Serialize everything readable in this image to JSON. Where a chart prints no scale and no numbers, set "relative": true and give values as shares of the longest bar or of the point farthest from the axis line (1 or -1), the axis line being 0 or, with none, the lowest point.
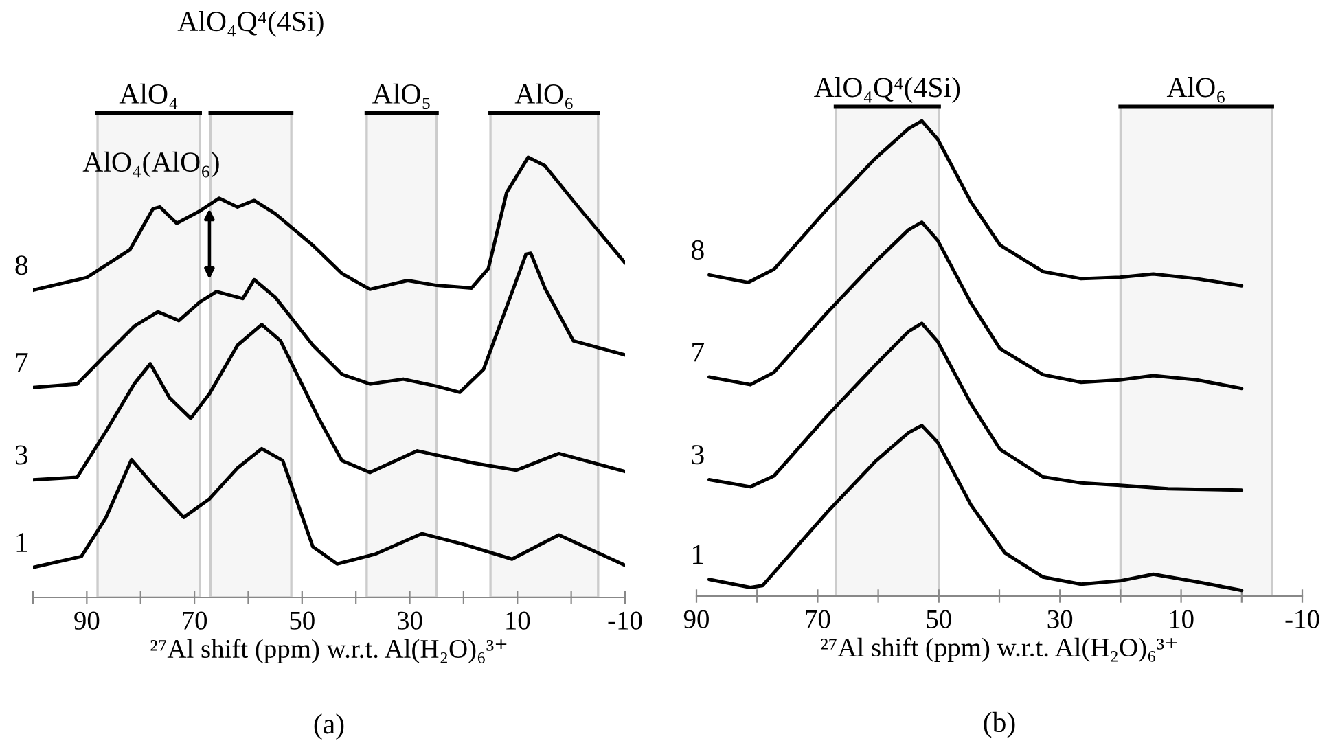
{
  "chart_data": [
    {
      "type": "line",
      "relative": true,
      "xlabel": "²⁷Al shift (ppm) w.r.t. Al(H₂O)₆³⁺",
      "xlim": [
        100,
        -10
      ],
      "xticks": [
        {
          "value": 100,
          "label": null
        },
        90,
        {
          "value": 80,
          "label": null
        },
        70,
        {
          "value": 60,
          "label": null
        },
        50,
        {
          "value": 40,
          "label": null
        },
        30,
        {
          "value": 20,
          "label": null
        },
        10,
        {
          "value": 0,
          "label": null
        },
        -10
      ],
      "grid": false,
      "legend": false,
      "marker": "none",
      "line_style": "solid",
      "series": [
        {
          "name": "8",
          "color": "#000000",
          "x": [
            100,
            90,
            82,
            77.7,
            76.4,
            73.3,
            69,
            65.4,
            62,
            58.9,
            55,
            48,
            42.6,
            37.4,
            30.4,
            25,
            18.5,
            15.4,
            12,
            8,
            4.9,
            -1.2,
            -10
          ],
          "values": [
            0.698,
            0.727,
            0.79,
            0.883,
            0.887,
            0.85,
            0.878,
            0.907,
            0.887,
            0.902,
            0.872,
            0.8,
            0.736,
            0.7,
            0.72,
            0.709,
            0.703,
            0.747,
            0.92,
            1.0,
            0.981,
            0.889,
            0.76
          ]
        },
        {
          "name": "7",
          "color": "#000000",
          "x": [
            100,
            91.8,
            86.5,
            81.2,
            76.8,
            72.9,
            69,
            65.9,
            61,
            58.9,
            55,
            48,
            42.6,
            37.4,
            31.2,
            25,
            20.7,
            16.3,
            12,
            8.4,
            7.5,
            4.9,
            -0.4,
            -10
          ],
          "values": [
            0.477,
            0.485,
            0.551,
            0.616,
            0.649,
            0.629,
            0.671,
            0.695,
            0.679,
            0.722,
            0.682,
            0.573,
            0.507,
            0.485,
            0.496,
            0.48,
            0.466,
            0.518,
            0.66,
            0.78,
            0.782,
            0.703,
            0.583,
            0.551
          ]
        },
        {
          "name": "3",
          "color": "#000000",
          "x": [
            100,
            91.8,
            86.5,
            81.2,
            78.2,
            74.6,
            70.7,
            67.2,
            62,
            57.5,
            54,
            47,
            42.6,
            37.4,
            28.6,
            18,
            10.2,
            2.3,
            -10
          ],
          "values": [
            0.267,
            0.273,
            0.376,
            0.485,
            0.531,
            0.453,
            0.407,
            0.463,
            0.573,
            0.62,
            0.583,
            0.409,
            0.311,
            0.284,
            0.333,
            0.305,
            0.289,
            0.327,
            0.286
          ]
        },
        {
          "name": "1",
          "color": "#000000",
          "x": [
            100,
            91,
            86.5,
            81.7,
            77.7,
            72,
            67.2,
            62,
            57.5,
            53.6,
            48,
            43.5,
            36.5,
            27.7,
            19.8,
            11,
            2.3,
            -10
          ],
          "values": [
            0.068,
            0.093,
            0.18,
            0.313,
            0.256,
            0.182,
            0.224,
            0.294,
            0.338,
            0.311,
            0.115,
            0.076,
            0.098,
            0.145,
            0.12,
            0.087,
            0.142,
            0.073
          ]
        }
      ],
      "bands": [
        {
          "axis": "x",
          "from": 88,
          "to": 69,
          "label": "AlO₄"
        },
        {
          "axis": "x",
          "from": 67,
          "to": 52,
          "label": "AlO₄Q⁴(4Si)"
        },
        {
          "axis": "x",
          "from": 38,
          "to": 25,
          "label": "AlO₅"
        },
        {
          "axis": "x",
          "from": 15,
          "to": -5,
          "label": "AlO₆"
        }
      ],
      "annotations": [
        "AlO₄(AlO₆)",
        "(a)"
      ]
    },
    {
      "type": "line",
      "relative": true,
      "xlabel": "²⁷Al shift (ppm) w.r.t. Al(H₂O)₆³⁺",
      "xlim": [
        90,
        -10
      ],
      "xticks": [
        90,
        {
          "value": 80,
          "label": null
        },
        70,
        {
          "value": 60,
          "label": null
        },
        50,
        {
          "value": 40,
          "label": null
        },
        30,
        {
          "value": 20,
          "label": null
        },
        10,
        {
          "value": 0,
          "label": null
        },
        -10
      ],
      "grid": false,
      "legend": false,
      "marker": "none",
      "line_style": "solid",
      "series": [
        {
          "name": "8",
          "color": "#000000",
          "x": [
            87.9,
            81.5,
            77.2,
            68.4,
            60.5,
            55,
            52.8,
            50.2,
            44.7,
            39.9,
            32.8,
            26.5,
            20.1,
            14.6,
            7.4,
            0
          ],
          "values": [
            0.676,
            0.66,
            0.688,
            0.815,
            0.921,
            0.984,
            1.0,
            0.962,
            0.83,
            0.739,
            0.683,
            0.668,
            0.671,
            0.678,
            0.668,
            0.653
          ]
        },
        {
          "name": "7",
          "color": "#000000",
          "x": [
            87.9,
            81.1,
            77.2,
            68.4,
            60.5,
            55,
            52.8,
            50.2,
            44.7,
            39.9,
            32.8,
            26.5,
            20.1,
            14.6,
            7.4,
            0
          ],
          "values": [
            0.461,
            0.445,
            0.471,
            0.597,
            0.703,
            0.771,
            0.787,
            0.749,
            0.617,
            0.521,
            0.466,
            0.45,
            0.455,
            0.464,
            0.455,
            0.437
          ]
        },
        {
          "name": "3",
          "color": "#000000",
          "x": [
            87.9,
            81.1,
            77.2,
            68.4,
            60.5,
            55,
            52.8,
            50.2,
            44.7,
            39.9,
            32.8,
            26.5,
            20.1,
            12.2,
            0
          ],
          "values": [
            0.245,
            0.23,
            0.253,
            0.38,
            0.486,
            0.557,
            0.574,
            0.536,
            0.405,
            0.309,
            0.251,
            0.238,
            0.233,
            0.226,
            0.223
          ]
        },
        {
          "name": "1",
          "color": "#000000",
          "x": [
            87.9,
            81.1,
            79.1,
            68.4,
            60.5,
            55,
            52.8,
            50.2,
            44.7,
            39.1,
            32.8,
            26.5,
            20.1,
            14.6,
            7.4,
            0
          ],
          "values": [
            0.035,
            0.018,
            0.022,
            0.177,
            0.283,
            0.344,
            0.359,
            0.324,
            0.192,
            0.091,
            0.04,
            0.025,
            0.032,
            0.046,
            0.03,
            0.012
          ]
        }
      ],
      "bands": [
        {
          "axis": "x",
          "from": 67,
          "to": 50,
          "label": "AlO₄Q⁴(4Si)"
        },
        {
          "axis": "x",
          "from": 20,
          "to": -5,
          "label": "AlO₆"
        }
      ],
      "annotations": [
        "(b)"
      ]
    }
  ]
}
